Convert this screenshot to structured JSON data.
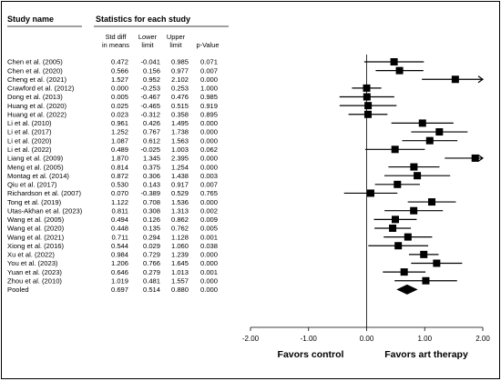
{
  "headers": {
    "study_name": "Study name",
    "statistics": "Statistics for each study",
    "col_sdm": [
      "Std diff",
      "in means"
    ],
    "col_lower": [
      "Lower",
      "limit"
    ],
    "col_upper": [
      "Upper",
      "limit"
    ],
    "col_p": "p-Value"
  },
  "chart_data": {
    "type": "forest",
    "xlim": [
      -2.0,
      2.0
    ],
    "ticks": [
      "-2.00",
      "-1.00",
      "0.00",
      "1.00",
      "2.00"
    ],
    "tick_values": [
      -2.0,
      -1.0,
      0.0,
      1.0,
      2.0
    ],
    "favors_left": "Favors control",
    "favors_right": "Favors art therapy",
    "studies": [
      {
        "name": "Chen et al. (2005)",
        "sdm": "0.472",
        "lower": "-0.041",
        "upper": "0.985",
        "p": "0.071"
      },
      {
        "name": "Chen et al. (2020)",
        "sdm": "0.566",
        "lower": "0.156",
        "upper": "0.977",
        "p": "0.007"
      },
      {
        "name": "Cheng et al. (2021)",
        "sdm": "1.527",
        "lower": "0.952",
        "upper": "2.102",
        "p": "0.000"
      },
      {
        "name": "Crawford et al. (2012)",
        "sdm": "0.000",
        "lower": "-0.253",
        "upper": "0.253",
        "p": "1.000"
      },
      {
        "name": "Dong et al. (2013)",
        "sdm": "0.005",
        "lower": "-0.467",
        "upper": "0.476",
        "p": "0.985"
      },
      {
        "name": "Huang et al. (2020)",
        "sdm": "0.025",
        "lower": "-0.465",
        "upper": "0.515",
        "p": "0.919"
      },
      {
        "name": "Huang et al. (2022)",
        "sdm": "0.023",
        "lower": "-0.312",
        "upper": "0.358",
        "p": "0.895"
      },
      {
        "name": "Li et al. (2010)",
        "sdm": "0.961",
        "lower": "0.426",
        "upper": "1.495",
        "p": "0.000"
      },
      {
        "name": "Li et al. (2017)",
        "sdm": "1.252",
        "lower": "0.767",
        "upper": "1.738",
        "p": "0.000"
      },
      {
        "name": "Li et al. (2020)",
        "sdm": "1.087",
        "lower": "0.612",
        "upper": "1.563",
        "p": "0.000"
      },
      {
        "name": "Li et al. (2022)",
        "sdm": "0.489",
        "lower": "-0.025",
        "upper": "1.003",
        "p": "0.062"
      },
      {
        "name": "Liang et al. (2009)",
        "sdm": "1.870",
        "lower": "1.345",
        "upper": "2.395",
        "p": "0.000"
      },
      {
        "name": "Meng et al. (2005)",
        "sdm": "0.814",
        "lower": "0.375",
        "upper": "1.254",
        "p": "0.000"
      },
      {
        "name": "Montag et al. (2014)",
        "sdm": "0.872",
        "lower": "0.306",
        "upper": "1.438",
        "p": "0.003"
      },
      {
        "name": "Qiu et al. (2017)",
        "sdm": "0.530",
        "lower": "0.143",
        "upper": "0.917",
        "p": "0.007"
      },
      {
        "name": "Richardson et al. (2007)",
        "sdm": "0.070",
        "lower": "-0.389",
        "upper": "0.529",
        "p": "0.765"
      },
      {
        "name": "Tong et al. (2019)",
        "sdm": "1.122",
        "lower": "0.708",
        "upper": "1.536",
        "p": "0.000"
      },
      {
        "name": "Utas-Akhan et al. (2023)",
        "sdm": "0.811",
        "lower": "0.308",
        "upper": "1.313",
        "p": "0.002"
      },
      {
        "name": "Wang et al. (2005)",
        "sdm": "0.494",
        "lower": "0.126",
        "upper": "0.862",
        "p": "0.009"
      },
      {
        "name": "Wang et al. (2020)",
        "sdm": "0.448",
        "lower": "0.135",
        "upper": "0.762",
        "p": "0.005"
      },
      {
        "name": "Wang et al. (2021)",
        "sdm": "0.711",
        "lower": "0.294",
        "upper": "1.128",
        "p": "0.001"
      },
      {
        "name": "Xiong et al. (2016)",
        "sdm": "0.544",
        "lower": "0.029",
        "upper": "1.060",
        "p": "0.038"
      },
      {
        "name": "Xu et al. (2022)",
        "sdm": "0.984",
        "lower": "0.729",
        "upper": "1.239",
        "p": "0.000"
      },
      {
        "name": "You et al. (2023)",
        "sdm": "1.206",
        "lower": "0.766",
        "upper": "1.645",
        "p": "0.000"
      },
      {
        "name": "Yuan et al. (2023)",
        "sdm": "0.646",
        "lower": "0.279",
        "upper": "1.013",
        "p": "0.001"
      },
      {
        "name": "Zhou et al. (2010)",
        "sdm": "1.019",
        "lower": "0.481",
        "upper": "1.557",
        "p": "0.000"
      }
    ],
    "pooled": {
      "name": "Pooled",
      "sdm": "0.697",
      "lower": "0.514",
      "upper": "0.880",
      "p": "0.000"
    }
  }
}
